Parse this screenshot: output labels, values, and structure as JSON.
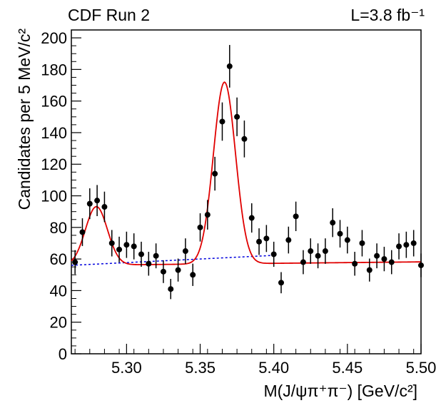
{
  "chart_data": {
    "type": "scatter",
    "title_left": "CDF Run 2",
    "title_right": "L=3.8 fb⁻¹",
    "xlabel": "M(J/ψπ⁺π⁻) [GeV/c²]",
    "ylabel": "Candidates per 5 MeV/c²",
    "xlim": [
      5.2625,
      5.5
    ],
    "ylim": [
      0,
      205
    ],
    "x_ticks": [
      5.3,
      5.35,
      5.4,
      5.45,
      5.5
    ],
    "x_tick_labels": [
      "5.30",
      "5.35",
      "5.40",
      "5.45",
      "5.50"
    ],
    "y_ticks": [
      0,
      20,
      40,
      60,
      80,
      100,
      120,
      140,
      160,
      180,
      200
    ],
    "y_tick_labels": [
      "0",
      "20",
      "40",
      "60",
      "80",
      "100",
      "120",
      "140",
      "160",
      "180",
      "200"
    ],
    "grid": false,
    "series": [
      {
        "kind": "points_with_errors",
        "x": [
          5.265,
          5.27,
          5.275,
          5.28,
          5.285,
          5.29,
          5.295,
          5.3,
          5.305,
          5.31,
          5.315,
          5.32,
          5.325,
          5.33,
          5.335,
          5.34,
          5.345,
          5.35,
          5.355,
          5.36,
          5.365,
          5.37,
          5.375,
          5.38,
          5.385,
          5.39,
          5.395,
          5.4,
          5.405,
          5.41,
          5.415,
          5.42,
          5.425,
          5.43,
          5.435,
          5.44,
          5.445,
          5.45,
          5.455,
          5.46,
          5.465,
          5.47,
          5.475,
          5.48,
          5.485,
          5.49,
          5.495,
          5.5
        ],
        "y": [
          58,
          77,
          95,
          97,
          93,
          70,
          66,
          69,
          68,
          63,
          57,
          62,
          52,
          41,
          53,
          65,
          50,
          80,
          88,
          114,
          147,
          182,
          150,
          136,
          86,
          71,
          73,
          63,
          45,
          72,
          87,
          58,
          65,
          62,
          65,
          83,
          76,
          72,
          57,
          70,
          53,
          62,
          60,
          58,
          68,
          69,
          70,
          56
        ],
        "color": "#000000"
      },
      {
        "kind": "fit_curve",
        "color": "#e00000",
        "model": "linear background + gaussian peaks",
        "background": {
          "a": 56,
          "b": 9.2
        },
        "peaks": [
          {
            "mean": 5.2795,
            "sigma": 0.0075,
            "amplitude": 37
          },
          {
            "mean": 5.3665,
            "sigma": 0.0075,
            "amplitude": 115
          }
        ]
      },
      {
        "kind": "background_line",
        "color": "#0000dd",
        "style": "dashed",
        "x": [
          5.2625,
          5.4
        ],
        "y": [
          56.0,
          62.3
        ]
      }
    ]
  }
}
